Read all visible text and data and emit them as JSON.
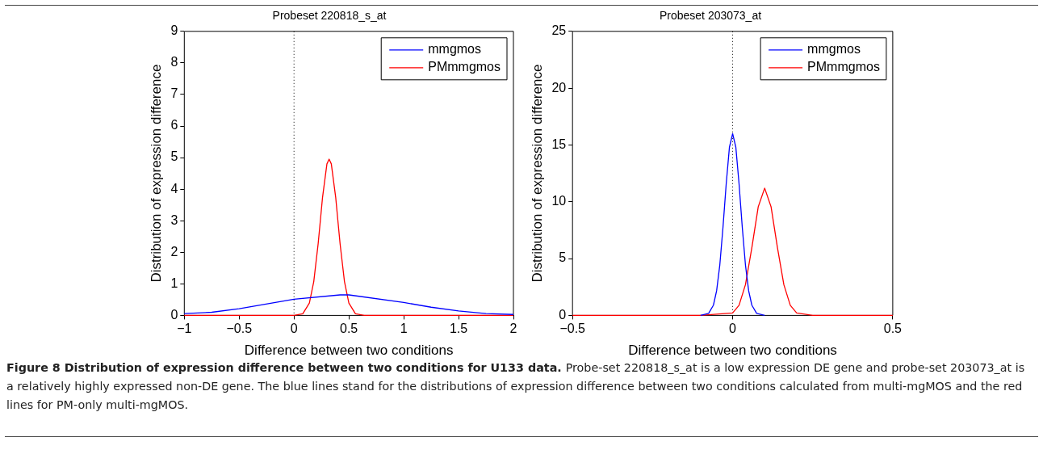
{
  "chart_data": [
    {
      "type": "line",
      "title": "Probeset 220818_s_at",
      "xlabel": "Difference between two conditions",
      "ylabel": "Distribution of expression difference",
      "xlim": [
        -1,
        2
      ],
      "xticks": [
        -1,
        -0.5,
        0,
        0.5,
        1,
        1.5,
        2
      ],
      "ylim": [
        0,
        9
      ],
      "yticks": [
        0,
        1,
        2,
        3,
        4,
        5,
        6,
        7,
        8,
        9
      ],
      "grid": false,
      "legend": "top right",
      "marker": "none",
      "line_style": "solid",
      "ref_lines": [
        {
          "axis": "x",
          "value": 0,
          "color": "#000000",
          "line_style": "dotted"
        }
      ],
      "series": [
        {
          "name": "mmgmos",
          "color": "#0000ff",
          "x": [
            -1,
            -0.75,
            -0.5,
            0,
            0.42,
            0.5,
            1,
            1.25,
            1.5,
            1.75,
            2
          ],
          "values": [
            0.06,
            0.1,
            0.21,
            0.51,
            0.65,
            0.65,
            0.41,
            0.26,
            0.14,
            0.06,
            0.03
          ]
        },
        {
          "name": "PMmmgmos",
          "color": "#ff0000",
          "x": [
            -1,
            0,
            0.08,
            0.14,
            0.18,
            0.22,
            0.24,
            0.26,
            0.3,
            0.32,
            0.34,
            0.38,
            0.4,
            0.42,
            0.46,
            0.5,
            0.56,
            0.64,
            1,
            2
          ],
          "values": [
            0,
            0,
            0.05,
            0.39,
            1.07,
            2.27,
            3.0,
            3.74,
            4.8,
            4.95,
            4.8,
            3.74,
            3.0,
            2.27,
            1.07,
            0.39,
            0.05,
            0,
            0,
            0
          ]
        }
      ],
      "annotations": [
        "Figure 8 Distribution of expression difference between two conditions for U133 data.",
        "Probe-set 220818_s_at is a low expression DE gene and probe-set 203073_at is a relatively highly expressed non-DE gene. The blue lines stand for the distributions of expression difference between two conditions calculated from multi-mgMOS and the red lines for PM-only multi-mgMOS."
      ]
    },
    {
      "type": "line",
      "title": "Probeset 203073_at",
      "xlabel": "Difference between two conditions",
      "ylabel": "Distribution of expression difference",
      "xlim": [
        -0.5,
        0.5
      ],
      "xticks": [
        -0.5,
        0,
        0.5
      ],
      "ylim": [
        0,
        25
      ],
      "yticks": [
        0,
        5,
        10,
        15,
        20,
        25
      ],
      "grid": false,
      "legend": "top right",
      "marker": "none",
      "line_style": "solid",
      "ref_lines": [
        {
          "axis": "x",
          "value": 0,
          "color": "#000000",
          "line_style": "dotted"
        }
      ],
      "series": [
        {
          "name": "mmgmos",
          "color": "#0000ff",
          "x": [
            -0.1,
            -0.075,
            -0.06,
            -0.05,
            -0.04,
            -0.03,
            -0.02,
            -0.01,
            0,
            0.01,
            0.02,
            0.03,
            0.04,
            0.05,
            0.06,
            0.075,
            0.1
          ],
          "values": [
            0,
            0.18,
            0.9,
            2.17,
            4.45,
            7.8,
            11.6,
            14.8,
            16,
            14.8,
            11.6,
            7.8,
            4.45,
            2.17,
            0.9,
            0.18,
            0
          ]
        },
        {
          "name": "PMmmgmos",
          "color": "#ff0000",
          "x": [
            -0.5,
            -0.1,
            0,
            0.02,
            0.04,
            0.06,
            0.08,
            0.1,
            0.12,
            0.14,
            0.16,
            0.18,
            0.2,
            0.25,
            0.5
          ],
          "values": [
            0,
            0,
            0.22,
            0.89,
            2.7,
            5.96,
            9.56,
            11.2,
            9.56,
            5.96,
            2.7,
            0.89,
            0.22,
            0,
            0
          ]
        }
      ]
    }
  ]
}
